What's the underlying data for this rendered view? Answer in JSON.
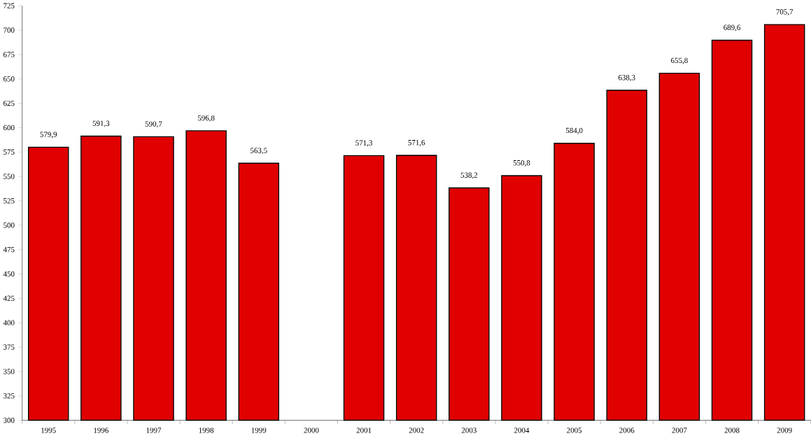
{
  "chart_data": {
    "type": "bar",
    "categories": [
      "1995",
      "1996",
      "1997",
      "1998",
      "1999",
      "2000",
      "2001",
      "2002",
      "2003",
      "2004",
      "2005",
      "2006",
      "2007",
      "2008",
      "2009"
    ],
    "values": [
      579.9,
      591.3,
      590.7,
      596.8,
      563.5,
      null,
      571.3,
      571.6,
      538.2,
      550.8,
      584.0,
      638.3,
      655.8,
      689.6,
      705.7
    ],
    "value_labels": [
      "579,9",
      "591,3",
      "590,7",
      "596,8",
      "563,5",
      null,
      "571,3",
      "571,6",
      "538,2",
      "550,8",
      "584,0",
      "638,3",
      "655,8",
      "689,6",
      "705,7"
    ],
    "color": "#e00000",
    "ylim": [
      300,
      725
    ],
    "yticks": [
      300,
      325,
      350,
      375,
      400,
      425,
      450,
      475,
      500,
      525,
      550,
      575,
      600,
      625,
      650,
      675,
      700,
      725
    ],
    "grid": false
  }
}
